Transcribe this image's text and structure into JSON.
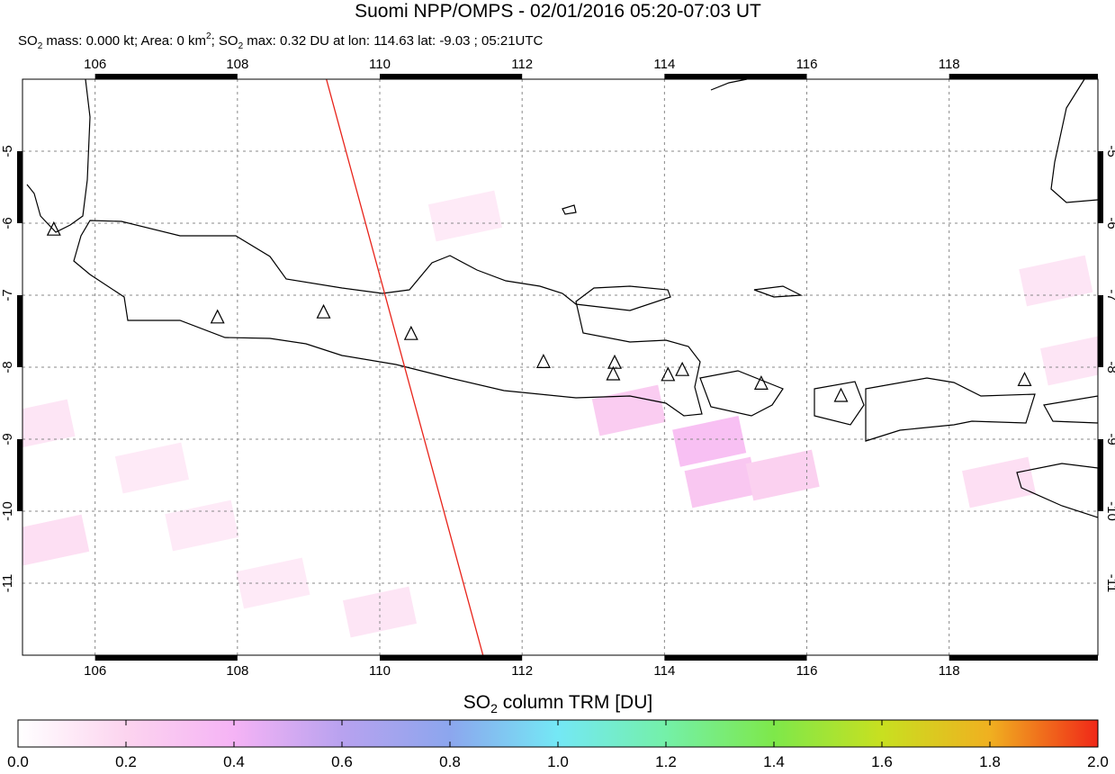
{
  "header": {
    "title": "Suomi NPP/OMPS - 02/01/2016 05:20-07:03 UT",
    "subtitle": [
      "SO",
      "2",
      " mass: 0.000 kt; Area: 0 km",
      "2",
      "; SO",
      "2",
      " max: 0.32 DU at lon: 114.63 lat: -9.03 ; 05:21UTC"
    ]
  },
  "map": {
    "xlim": [
      104.98,
      120.09
    ],
    "ylim": [
      -12,
      -4
    ],
    "xticks": [
      106,
      108,
      110,
      112,
      114,
      116,
      118
    ],
    "yticks": [
      -5,
      -6,
      -7,
      -8,
      -9,
      -10,
      -11
    ],
    "grid": true,
    "track_color": "#e8231a",
    "orbit_track": {
      "lon": [
        109.25,
        111.45
      ],
      "lat": [
        -4,
        -12
      ]
    },
    "volcanoes": [
      {
        "lon": 105.42,
        "lat": -6.09
      },
      {
        "lon": 107.72,
        "lat": -7.31
      },
      {
        "lon": 109.21,
        "lat": -7.24
      },
      {
        "lon": 110.44,
        "lat": -7.54
      },
      {
        "lon": 112.3,
        "lat": -7.93
      },
      {
        "lon": 113.3,
        "lat": -7.94
      },
      {
        "lon": 113.28,
        "lat": -8.1
      },
      {
        "lon": 114.05,
        "lat": -8.11
      },
      {
        "lon": 114.25,
        "lat": -8.04
      },
      {
        "lon": 115.36,
        "lat": -8.23
      },
      {
        "lon": 116.48,
        "lat": -8.4
      },
      {
        "lon": 119.06,
        "lat": -8.18
      }
    ],
    "pixels": [
      {
        "lon": 113.5,
        "lat": -8.6,
        "value": 0.25
      },
      {
        "lon": 114.63,
        "lat": -9.03,
        "value": 0.32
      },
      {
        "lon": 114.8,
        "lat": -9.6,
        "value": 0.28
      },
      {
        "lon": 115.66,
        "lat": -9.5,
        "value": 0.22
      },
      {
        "lon": 118.7,
        "lat": -9.6,
        "value": 0.15
      },
      {
        "lon": 111.2,
        "lat": -5.9,
        "value": 0.1
      },
      {
        "lon": 105.2,
        "lat": -8.8,
        "value": 0.12
      },
      {
        "lon": 105.4,
        "lat": -10.4,
        "value": 0.15
      },
      {
        "lon": 108.5,
        "lat": -11.0,
        "value": 0.1
      },
      {
        "lon": 110.0,
        "lat": -11.4,
        "value": 0.12
      },
      {
        "lon": 106.8,
        "lat": -9.4,
        "value": 0.1
      },
      {
        "lon": 119.5,
        "lat": -6.8,
        "value": 0.12
      },
      {
        "lon": 119.8,
        "lat": -7.9,
        "value": 0.12
      },
      {
        "lon": 107.5,
        "lat": -10.2,
        "value": 0.1
      }
    ]
  },
  "colorbar": {
    "label": [
      "SO",
      "2",
      " column TRM [DU]"
    ],
    "ticks": [
      {
        "value": 0,
        "label": "0.0"
      },
      {
        "value": 0.2,
        "label": "0.2"
      },
      {
        "value": 0.4,
        "label": "0.4"
      },
      {
        "value": 0.6,
        "label": "0.6"
      },
      {
        "value": 0.8,
        "label": "0.8"
      },
      {
        "value": 1,
        "label": "1.0"
      },
      {
        "value": 1.2,
        "label": "1.2"
      },
      {
        "value": 1.4,
        "label": "1.4"
      },
      {
        "value": 1.6,
        "label": "1.6"
      },
      {
        "value": 1.8,
        "label": "1.8"
      },
      {
        "value": 2,
        "label": "2.0"
      }
    ],
    "colors": [
      "#ffffff",
      "#fcd4ef",
      "#f5b3f5",
      "#b8a2ef",
      "#8ca6ee",
      "#74e8f5",
      "#74f0a8",
      "#7ee84a",
      "#c8e020",
      "#f0b020",
      "#f02818"
    ]
  }
}
